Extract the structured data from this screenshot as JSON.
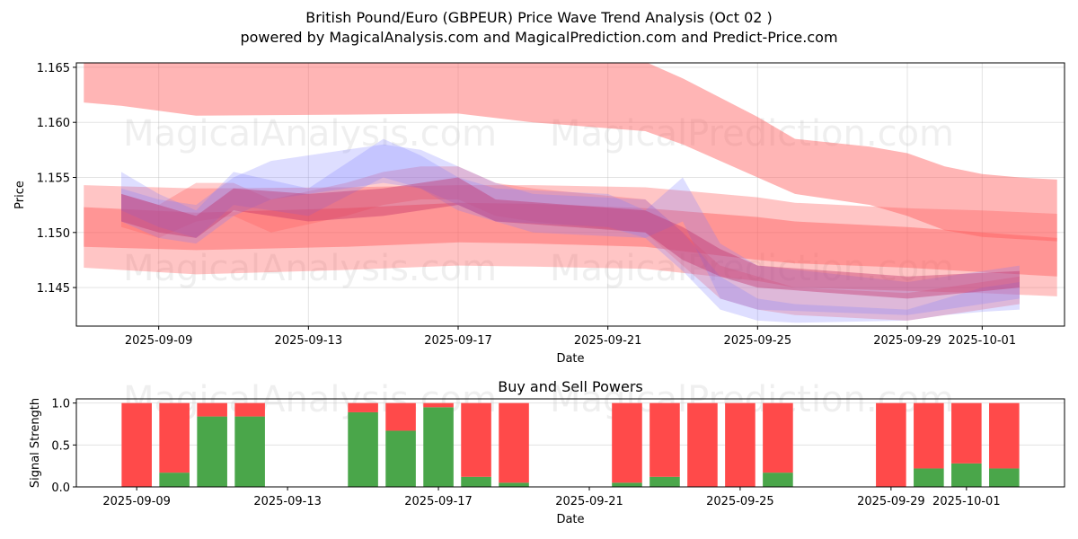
{
  "title": "British Pound/Euro (GBPEUR) Price Wave Trend Analysis (Oct 02 )",
  "subtitle": "powered by MagicalAnalysis.com and MagicalPrediction.com and Predict-Price.com",
  "watermarks": [
    "MagicalAnalysis.com",
    "MagicalPrediction.com"
  ],
  "colors": {
    "sell": "#ff4a4a",
    "buy": "#4aa64a",
    "red_band": "#ff5a5a",
    "blue_band": "#7a7aff"
  },
  "chart_data": [
    {
      "type": "area",
      "title": "",
      "xlabel": "Date",
      "ylabel": "Price",
      "xlim": [
        "2025-09-06.8",
        "2025-10-03.2"
      ],
      "ylim": [
        1.1415,
        1.1654
      ],
      "grid": true,
      "xticks": [
        "2025-09-09",
        "2025-09-13",
        "2025-09-17",
        "2025-09-21",
        "2025-09-25",
        "2025-09-29",
        "2025-10-01"
      ],
      "yticks": [
        "1.145",
        "1.150",
        "1.155",
        "1.160",
        "1.165"
      ],
      "yticks_values": [
        1.145,
        1.15,
        1.155,
        1.16,
        1.165
      ],
      "series": [
        {
          "name": "red-band-upper",
          "color": "red",
          "opacity": 0.45,
          "x": [
            "2025-09-07",
            "2025-09-08",
            "2025-09-10",
            "2025-09-14",
            "2025-09-17",
            "2025-09-19",
            "2025-09-22",
            "2025-09-23",
            "2025-09-25",
            "2025-09-26",
            "2025-09-28",
            "2025-09-29",
            "2025-09-30",
            "2025-10-01",
            "2025-10-02",
            "2025-10-03"
          ],
          "upper": [
            1.166,
            1.166,
            1.166,
            1.166,
            1.166,
            1.166,
            1.1655,
            1.164,
            1.1605,
            1.1585,
            1.1578,
            1.1572,
            1.156,
            1.1553,
            1.155,
            1.1548
          ],
          "lower": [
            1.1618,
            1.1615,
            1.1606,
            1.1607,
            1.1608,
            1.16,
            1.1592,
            1.158,
            1.155,
            1.1535,
            1.1525,
            1.1515,
            1.1502,
            1.1496,
            1.1494,
            1.1492
          ]
        },
        {
          "name": "red-band-wide",
          "color": "red",
          "opacity": 0.35,
          "x": [
            "2025-09-07",
            "2025-09-10",
            "2025-09-14",
            "2025-09-17",
            "2025-09-19",
            "2025-09-22",
            "2025-09-25",
            "2025-09-26",
            "2025-09-29",
            "2025-10-01",
            "2025-10-03"
          ],
          "upper": [
            1.1543,
            1.154,
            1.1541,
            1.1543,
            1.1543,
            1.1541,
            1.1532,
            1.1527,
            1.1522,
            1.152,
            1.1517
          ],
          "lower": [
            1.1468,
            1.1462,
            1.1466,
            1.147,
            1.1469,
            1.1467,
            1.1456,
            1.145,
            1.1447,
            1.1445,
            1.1442
          ]
        },
        {
          "name": "red-band-mid",
          "color": "red",
          "opacity": 0.45,
          "x": [
            "2025-09-07",
            "2025-09-10",
            "2025-09-14",
            "2025-09-17",
            "2025-09-19",
            "2025-09-22",
            "2025-09-25",
            "2025-09-26",
            "2025-09-29",
            "2025-10-01",
            "2025-10-03"
          ],
          "upper": [
            1.1523,
            1.1518,
            1.1522,
            1.1527,
            1.1526,
            1.1522,
            1.1514,
            1.151,
            1.1505,
            1.15,
            1.1495
          ],
          "lower": [
            1.1487,
            1.1484,
            1.1487,
            1.1491,
            1.149,
            1.1487,
            1.1475,
            1.1472,
            1.1468,
            1.1464,
            1.146
          ]
        },
        {
          "name": "red-wave-1",
          "color": "red",
          "opacity": 0.3,
          "x": [
            "2025-09-08",
            "2025-09-09",
            "2025-09-10",
            "2025-09-11",
            "2025-09-12",
            "2025-09-14",
            "2025-09-15",
            "2025-09-16",
            "2025-09-17",
            "2025-09-18",
            "2025-09-19",
            "2025-09-22",
            "2025-09-23",
            "2025-09-24",
            "2025-09-25",
            "2025-09-26",
            "2025-09-29",
            "2025-09-30",
            "2025-10-01",
            "2025-10-02"
          ],
          "upper": [
            1.1535,
            1.1525,
            1.1545,
            1.1545,
            1.153,
            1.1545,
            1.1555,
            1.156,
            1.156,
            1.1545,
            1.154,
            1.153,
            1.15,
            1.147,
            1.146,
            1.145,
            1.1445,
            1.145,
            1.1455,
            1.146
          ],
          "lower": [
            1.1505,
            1.1495,
            1.151,
            1.1515,
            1.15,
            1.1515,
            1.1525,
            1.153,
            1.153,
            1.1515,
            1.151,
            1.15,
            1.147,
            1.144,
            1.143,
            1.1425,
            1.142,
            1.1425,
            1.143,
            1.1435
          ]
        },
        {
          "name": "blue-wave-1",
          "color": "blue",
          "opacity": 0.25,
          "x": [
            "2025-09-08",
            "2025-09-09",
            "2025-09-10",
            "2025-09-11",
            "2025-09-12",
            "2025-09-14",
            "2025-09-15",
            "2025-09-16",
            "2025-09-17",
            "2025-09-18",
            "2025-09-19",
            "2025-09-22",
            "2025-09-23",
            "2025-09-24",
            "2025-09-25",
            "2025-09-26",
            "2025-09-29",
            "2025-09-30",
            "2025-10-01",
            "2025-10-02"
          ],
          "upper": [
            1.154,
            1.153,
            1.1525,
            1.155,
            1.1565,
            1.1575,
            1.158,
            1.1575,
            1.156,
            1.1545,
            1.1535,
            1.153,
            1.15,
            1.146,
            1.144,
            1.1435,
            1.143,
            1.144,
            1.145,
            1.1455
          ],
          "lower": [
            1.151,
            1.1495,
            1.149,
            1.1515,
            1.153,
            1.154,
            1.1545,
            1.154,
            1.1525,
            1.151,
            1.15,
            1.1495,
            1.1465,
            1.143,
            1.142,
            1.1418,
            1.142,
            1.1425,
            1.1428,
            1.143
          ]
        },
        {
          "name": "blue-wave-2",
          "color": "blue",
          "opacity": 0.25,
          "x": [
            "2025-09-08",
            "2025-09-09",
            "2025-09-10",
            "2025-09-11",
            "2025-09-13",
            "2025-09-15",
            "2025-09-16",
            "2025-09-17",
            "2025-09-18",
            "2025-09-21",
            "2025-09-22",
            "2025-09-23",
            "2025-09-24",
            "2025-09-25",
            "2025-09-29",
            "2025-10-02"
          ],
          "upper": [
            1.1555,
            1.1535,
            1.152,
            1.1555,
            1.154,
            1.1585,
            1.157,
            1.155,
            1.154,
            1.1535,
            1.152,
            1.155,
            1.149,
            1.147,
            1.1455,
            1.147
          ],
          "lower": [
            1.152,
            1.1505,
            1.1495,
            1.1525,
            1.1515,
            1.155,
            1.154,
            1.152,
            1.151,
            1.1505,
            1.1495,
            1.151,
            1.144,
            1.143,
            1.1425,
            1.144
          ]
        },
        {
          "name": "purple-core",
          "color": "mixed",
          "opacity": 0.4,
          "x": [
            "2025-09-08",
            "2025-09-09",
            "2025-09-10",
            "2025-09-11",
            "2025-09-13",
            "2025-09-15",
            "2025-09-17",
            "2025-09-18",
            "2025-09-22",
            "2025-09-23",
            "2025-09-24",
            "2025-09-25",
            "2025-09-29",
            "2025-10-02"
          ],
          "upper": [
            1.1535,
            1.1525,
            1.1515,
            1.154,
            1.1535,
            1.154,
            1.155,
            1.153,
            1.152,
            1.1505,
            1.1485,
            1.147,
            1.146,
            1.1465
          ],
          "lower": [
            1.151,
            1.15,
            1.1495,
            1.152,
            1.151,
            1.1515,
            1.1525,
            1.151,
            1.15,
            1.1475,
            1.146,
            1.145,
            1.144,
            1.145
          ]
        }
      ]
    },
    {
      "type": "bar",
      "title": "Buy and Sell Powers",
      "xlabel": "Date",
      "ylabel": "Signal Strength",
      "xlim": [
        "2025-09-07.4",
        "2025-10-03.6"
      ],
      "ylim": [
        0,
        1.05
      ],
      "grid": true,
      "xticks": [
        "2025-09-09",
        "2025-09-13",
        "2025-09-17",
        "2025-09-21",
        "2025-09-25",
        "2025-09-29",
        "2025-10-01"
      ],
      "yticks": [
        "0.0",
        "0.5",
        "1.0"
      ],
      "yticks_values": [
        0,
        0.5,
        1.0
      ],
      "categories": [
        "2025-09-09",
        "2025-09-10",
        "2025-09-11",
        "2025-09-12",
        "2025-09-15",
        "2025-09-16",
        "2025-09-17",
        "2025-09-18",
        "2025-09-19",
        "2025-09-22",
        "2025-09-23",
        "2025-09-24",
        "2025-09-25",
        "2025-09-26",
        "2025-09-29",
        "2025-09-30",
        "2025-10-01",
        "2025-10-02"
      ],
      "series": [
        {
          "name": "Buy",
          "color": "green",
          "values": [
            0.0,
            0.17,
            0.84,
            0.84,
            0.89,
            0.67,
            0.95,
            0.12,
            0.05,
            0.05,
            0.12,
            0.0,
            0.0,
            0.17,
            0.0,
            0.22,
            0.28,
            0.22
          ]
        },
        {
          "name": "Sell",
          "color": "red",
          "values": [
            1.0,
            0.83,
            0.16,
            0.16,
            0.11,
            0.33,
            0.05,
            0.88,
            0.95,
            0.95,
            0.88,
            1.0,
            1.0,
            0.83,
            1.0,
            0.78,
            0.72,
            0.78
          ]
        }
      ]
    }
  ]
}
